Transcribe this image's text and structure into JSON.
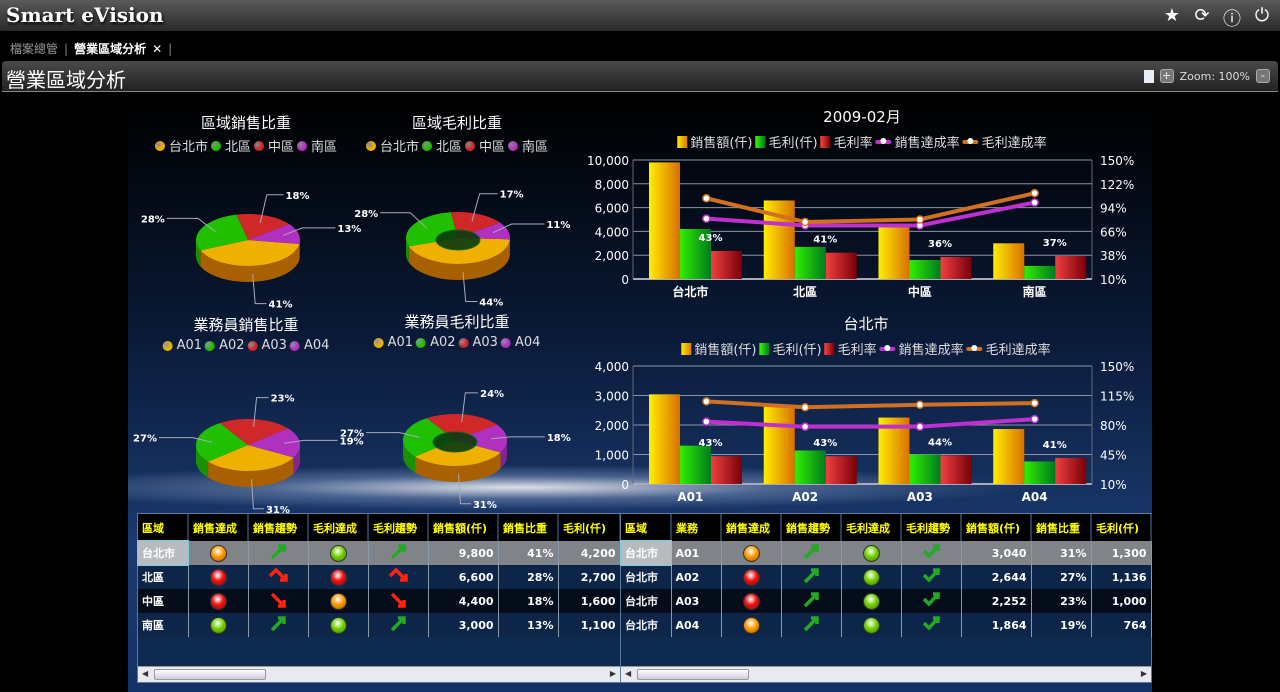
{
  "app": {
    "title": "Smart eVision",
    "icons": [
      "star-icon",
      "refresh-icon",
      "help-icon",
      "power-icon"
    ]
  },
  "tabs": [
    {
      "label": "檔案總管",
      "active": false
    },
    {
      "label": "營業區域分析",
      "active": true,
      "close": "✕"
    }
  ],
  "page": {
    "title": "營業區域分析",
    "zoom_label": "Zoom: 100%",
    "zoom_in": "+",
    "zoom_out": "-"
  },
  "colors": {
    "yellow": "#f0b000",
    "green": "#20c000",
    "red": "#d02828",
    "purple": "#b030c0",
    "line_sales": "#c030d0",
    "line_profit": "#d07020"
  },
  "pies": [
    {
      "title": "區域銷售比重",
      "legend": [
        "台北市",
        "北區",
        "中區",
        "南區"
      ],
      "values": [
        41,
        28,
        18,
        13
      ],
      "labels": [
        "41%",
        "28%",
        "18%",
        "13%"
      ],
      "donut": false
    },
    {
      "title": "區域毛利比重",
      "legend": [
        "台北市",
        "北區",
        "中區",
        "南區"
      ],
      "values": [
        44,
        28,
        17,
        11
      ],
      "labels": [
        "44%",
        "28%",
        "17%",
        "11%"
      ],
      "donut": true
    },
    {
      "title": "業務員銷售比重",
      "legend": [
        "A01",
        "A02",
        "A03",
        "A04"
      ],
      "values": [
        31,
        27,
        23,
        19
      ],
      "labels": [
        "31%",
        "27%",
        "23%",
        "19%"
      ],
      "donut": false
    },
    {
      "title": "業務員毛利比重",
      "legend": [
        "A01",
        "A02",
        "A03",
        "A04"
      ],
      "values": [
        31,
        27,
        24,
        18
      ],
      "labels": [
        "31%",
        "27%",
        "24%",
        "18%"
      ],
      "donut": true
    }
  ],
  "chart_data": [
    {
      "type": "bar",
      "title": "2009-02月",
      "legend": [
        "銷售額(仟)",
        "毛利(仟)",
        "毛利率",
        "銷售達成率",
        "毛利達成率"
      ],
      "categories": [
        "台北市",
        "北區",
        "中區",
        "南區"
      ],
      "ylim": [
        0,
        10000
      ],
      "yticks": [
        "0",
        "2,000",
        "4,000",
        "6,000",
        "8,000",
        "10,000"
      ],
      "y2lim": [
        10,
        150
      ],
      "y2ticks": [
        "10%",
        "38%",
        "66%",
        "94%",
        "122%",
        "150%"
      ],
      "series": [
        {
          "name": "銷售額(仟)",
          "axis": "left",
          "kind": "bar",
          "values": [
            9800,
            6600,
            4400,
            3000
          ]
        },
        {
          "name": "毛利(仟)",
          "axis": "left",
          "kind": "bar",
          "values": [
            4200,
            2700,
            1600,
            1100
          ]
        },
        {
          "name": "毛利率",
          "axis": "right",
          "kind": "bar",
          "values": [
            43,
            41,
            36,
            37
          ],
          "labels": [
            "43%",
            "41%",
            "36%",
            "37%"
          ]
        },
        {
          "name": "銷售達成率",
          "axis": "right",
          "kind": "line",
          "values": [
            81,
            73,
            73,
            100
          ]
        },
        {
          "name": "毛利達成率",
          "axis": "right",
          "kind": "line",
          "values": [
            105,
            77,
            80,
            111
          ]
        }
      ],
      "grid": true
    },
    {
      "type": "bar",
      "title": "台北市",
      "legend": [
        "銷售額(仟)",
        "毛利(仟)",
        "毛利率",
        "銷售達成率",
        "毛利達成率"
      ],
      "categories": [
        "A01",
        "A02",
        "A03",
        "A04"
      ],
      "ylim": [
        0,
        4000
      ],
      "yticks": [
        "0",
        "1,000",
        "2,000",
        "3,000",
        "4,000"
      ],
      "y2lim": [
        10,
        150
      ],
      "y2ticks": [
        "10%",
        "45%",
        "80%",
        "115%",
        "150%"
      ],
      "series": [
        {
          "name": "銷售額(仟)",
          "axis": "left",
          "kind": "bar",
          "values": [
            3040,
            2644,
            2252,
            1864
          ]
        },
        {
          "name": "毛利(仟)",
          "axis": "left",
          "kind": "bar",
          "values": [
            1300,
            1136,
            1000,
            764
          ]
        },
        {
          "name": "毛利率",
          "axis": "right",
          "kind": "bar",
          "values": [
            43,
            43,
            44,
            41
          ],
          "labels": [
            "43%",
            "43%",
            "44%",
            "41%"
          ]
        },
        {
          "name": "銷售達成率",
          "axis": "right",
          "kind": "line",
          "values": [
            84,
            78,
            78,
            87
          ]
        },
        {
          "name": "毛利達成率",
          "axis": "right",
          "kind": "line",
          "values": [
            108,
            101,
            104,
            106
          ]
        }
      ],
      "grid": true
    }
  ],
  "table_region": {
    "headers": [
      "區域",
      "銷售達成",
      "銷售趨勢",
      "毛利達成",
      "毛利趨勢",
      "銷售額(仟)",
      "銷售比重",
      "毛利(仟)"
    ],
    "rows": [
      [
        "台北市",
        "orange",
        "up",
        "green",
        "up",
        "9,800",
        "41%",
        "4,200"
      ],
      [
        "北區",
        "red",
        "peak-down",
        "red",
        "peak-down",
        "6,600",
        "28%",
        "2,700"
      ],
      [
        "中區",
        "red",
        "down",
        "orange",
        "down",
        "4,400",
        "18%",
        "1,600"
      ],
      [
        "南區",
        "green",
        "up",
        "green",
        "up",
        "3,000",
        "13%",
        "1,100"
      ]
    ]
  },
  "table_sales": {
    "headers": [
      "區域",
      "業務",
      "銷售達成",
      "銷售趨勢",
      "毛利達成",
      "毛利趨勢",
      "銷售額(仟)",
      "銷售比重",
      "毛利(仟)"
    ],
    "rows": [
      [
        "台北市",
        "A01",
        "orange",
        "up",
        "green",
        "check-up",
        "3,040",
        "31%",
        "1,300"
      ],
      [
        "台北市",
        "A02",
        "red",
        "up",
        "green",
        "check-up",
        "2,644",
        "27%",
        "1,136"
      ],
      [
        "台北市",
        "A03",
        "red",
        "up",
        "green",
        "check-up",
        "2,252",
        "23%",
        "1,000"
      ],
      [
        "台北市",
        "A04",
        "orange",
        "up",
        "green",
        "check-up",
        "1,864",
        "19%",
        "764"
      ]
    ]
  }
}
